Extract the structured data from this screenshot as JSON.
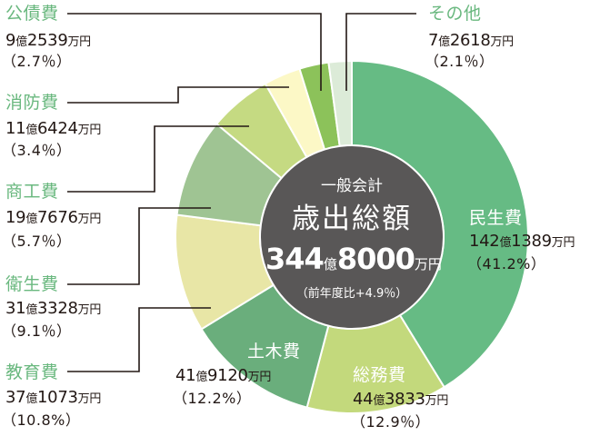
{
  "chart_data": {
    "type": "pie",
    "variant": "donut",
    "title": "一般会計 歳出総額",
    "center": {
      "line1": "一般会計",
      "line2": "歳出総額",
      "total_number_oku": "344",
      "total_unit_oku": "億",
      "total_number_man": "8000",
      "total_unit_man": "万円",
      "yoy": "（前年度比+4.9％）"
    },
    "unit": "万円",
    "categories": [
      "民生費",
      "総務費",
      "土木費",
      "教育費",
      "衛生費",
      "商工費",
      "消防費",
      "公債費",
      "その他"
    ],
    "values": [
      1421389,
      443833,
      419120,
      371073,
      313328,
      197676,
      116424,
      92539,
      72618
    ],
    "percentages": [
      41.2,
      12.9,
      12.2,
      10.8,
      9.1,
      5.7,
      3.4,
      2.7,
      2.1
    ],
    "colors": [
      "#66bb84",
      "#c3d97c",
      "#6aae7c",
      "#e8e6a6",
      "#9fc493",
      "#c5da82",
      "#fcf8c6",
      "#8cc25a",
      "#dcebd8"
    ],
    "center_color": "#595757"
  },
  "labels": {
    "minsei": {
      "name": "民生費",
      "oku": "142",
      "man": "1389",
      "unit_oku": "億",
      "unit_man": "万円",
      "pct": "（41.2%）"
    },
    "somu": {
      "name": "総務費",
      "oku": "44",
      "man": "3833",
      "unit_oku": "億",
      "unit_man": "万円",
      "pct": "（12.9％）"
    },
    "doboku": {
      "name": "土木費",
      "oku": "41",
      "man": "9120",
      "unit_oku": "億",
      "unit_man": "万円",
      "pct": "（12.2%）"
    },
    "kyoiku": {
      "name": "教育費",
      "oku": "37",
      "man": "1073",
      "unit_oku": "億",
      "unit_man": "万円",
      "pct": "（10.8%）"
    },
    "eisei": {
      "name": "衛生費",
      "oku": "31",
      "man": "3328",
      "unit_oku": "億",
      "unit_man": "万円",
      "pct": "（9.1％）"
    },
    "shoko": {
      "name": "商工費",
      "oku": "19",
      "man": "7676",
      "unit_oku": "億",
      "unit_man": "万円",
      "pct": "（5.7％）"
    },
    "shobo": {
      "name": "消防費",
      "oku": "11",
      "man": "6424",
      "unit_oku": "億",
      "unit_man": "万円",
      "pct": "（3.4％）"
    },
    "kosai": {
      "name": "公債費",
      "oku": "9",
      "man": "2539",
      "unit_oku": "億",
      "unit_man": "万円",
      "pct": "（2.7％）"
    },
    "sonota": {
      "name": "その他",
      "oku": "7",
      "man": "2618",
      "unit_oku": "億",
      "unit_man": "万円",
      "pct": "（2.1％）"
    }
  }
}
